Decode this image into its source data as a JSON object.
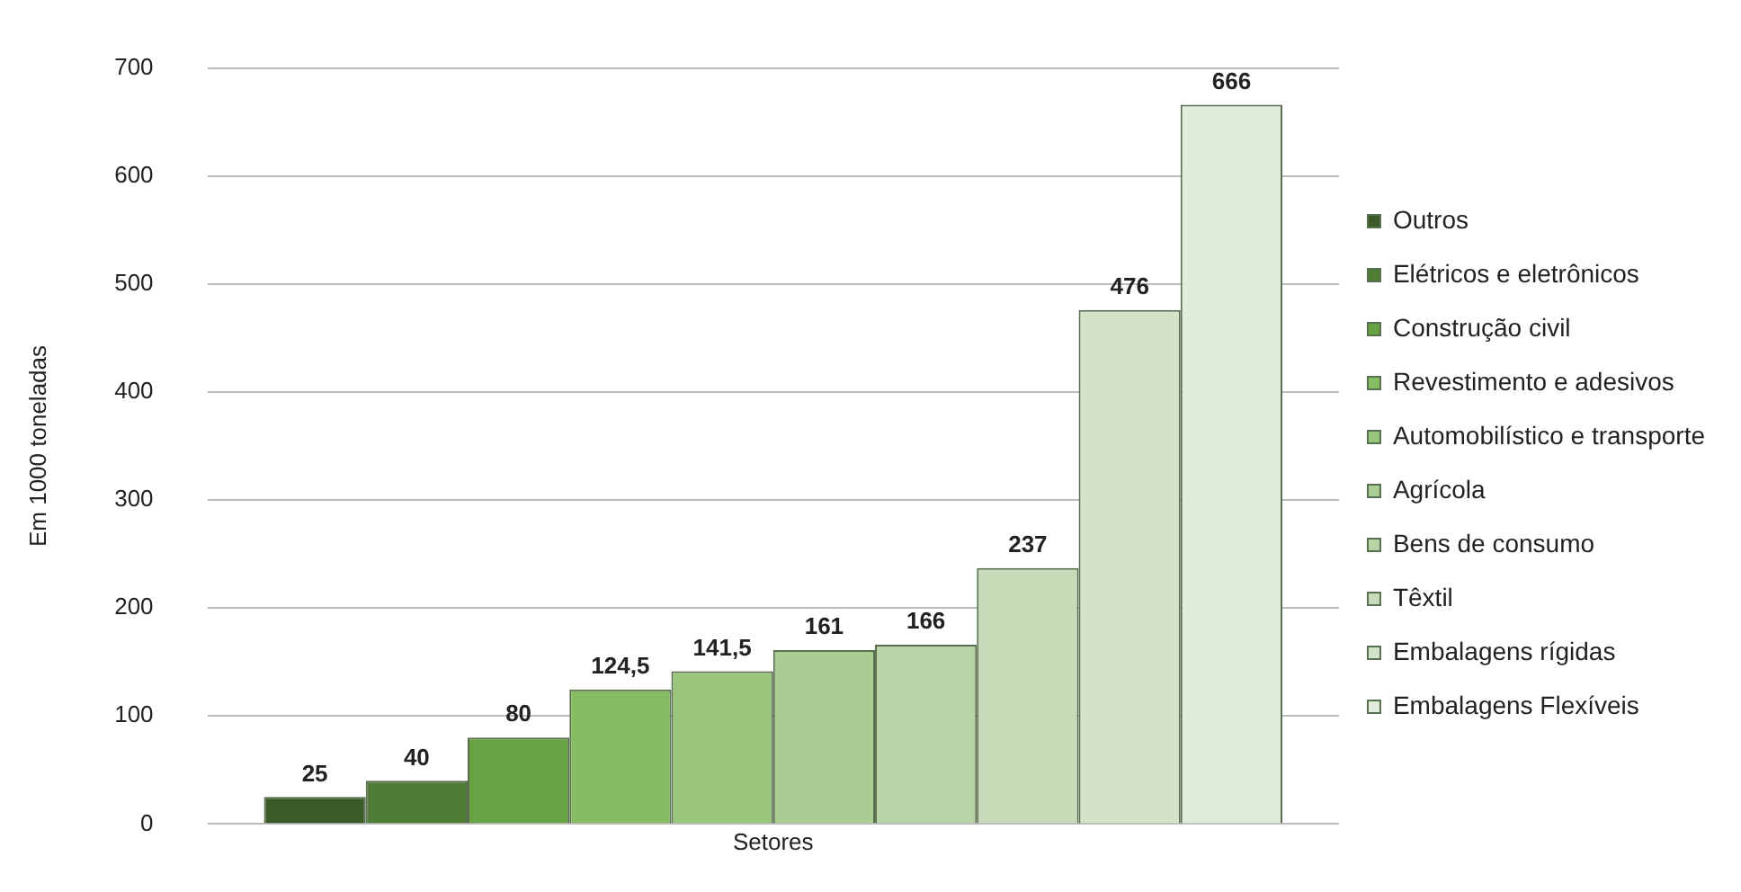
{
  "chart_data": {
    "type": "bar",
    "ylabel": "Em 1000 toneladas",
    "categories": [
      "Setores"
    ],
    "ylim": [
      0,
      700
    ],
    "yticks": [
      0,
      100,
      200,
      300,
      400,
      500,
      600,
      700
    ],
    "grid": "y",
    "legend": "right",
    "series": [
      {
        "name": "Outros",
        "color": "#3a5a28",
        "values": [
          25
        ],
        "value_labels": [
          "25"
        ]
      },
      {
        "name": "Elétricos e eletrônicos",
        "color": "#4f7d35",
        "values": [
          40
        ],
        "value_labels": [
          "40"
        ]
      },
      {
        "name": "Construção civil",
        "color": "#68a343",
        "values": [
          80
        ],
        "value_labels": [
          "80"
        ]
      },
      {
        "name": "Revestimento e adesivos",
        "color": "#86bd62",
        "values": [
          124.5
        ],
        "value_labels": [
          "124,5"
        ]
      },
      {
        "name": "Automobilístico e transporte",
        "color": "#99c67c",
        "values": [
          141.5
        ],
        "value_labels": [
          "141,5"
        ]
      },
      {
        "name": "Agrícola",
        "color": "#a9cd93",
        "values": [
          161
        ],
        "value_labels": [
          "161"
        ]
      },
      {
        "name": "Bens de consumo",
        "color": "#b8d4a6",
        "values": [
          166
        ],
        "value_labels": [
          "166"
        ]
      },
      {
        "name": "Têxtil",
        "color": "#c6dcb9",
        "values": [
          237
        ],
        "value_labels": [
          "237"
        ]
      },
      {
        "name": "Embalagens rígidas",
        "color": "#d3e3c8",
        "values": [
          476
        ],
        "value_labels": [
          "476"
        ]
      },
      {
        "name": "Embalagens Flexíveis",
        "color": "#e2ecdb",
        "values": [
          666
        ],
        "value_labels": [
          "666"
        ]
      }
    ]
  }
}
